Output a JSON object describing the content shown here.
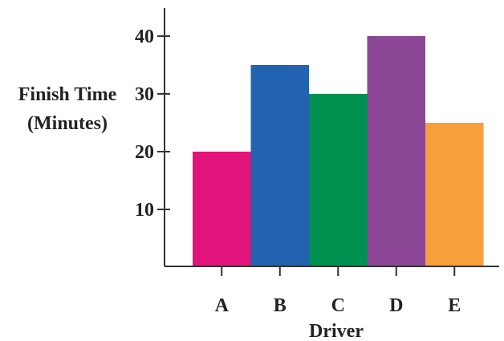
{
  "chart_data": {
    "type": "bar",
    "title": "",
    "xlabel": "Driver",
    "ylabel_lines": [
      "Finish Time",
      "(Minutes)"
    ],
    "categories": [
      "A",
      "B",
      "C",
      "D",
      "E"
    ],
    "values": [
      20,
      35,
      30,
      40,
      25
    ],
    "colors": [
      "#e0147a",
      "#2163b0",
      "#009150",
      "#8b4796",
      "#f5a03a"
    ],
    "yticks": [
      10,
      20,
      30,
      40
    ],
    "ylim": [
      0,
      45
    ],
    "grid": false
  }
}
